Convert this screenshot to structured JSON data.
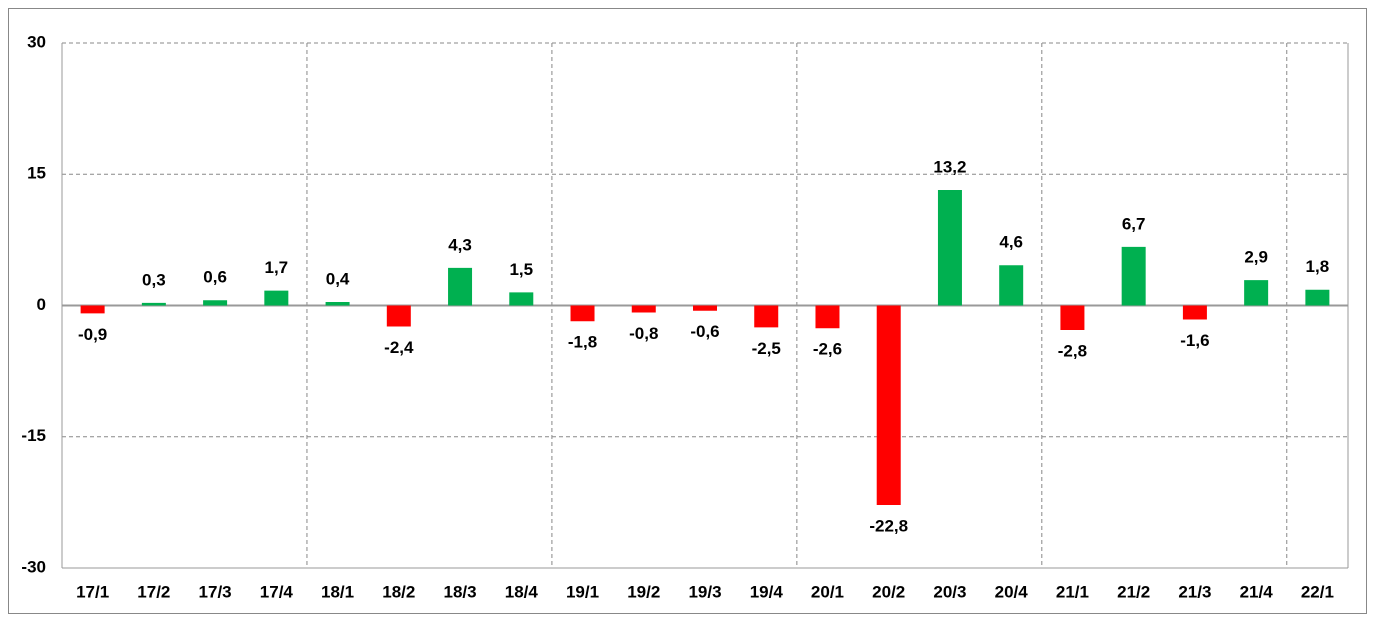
{
  "chart_data": {
    "type": "bar",
    "categories": [
      "17/1",
      "17/2",
      "17/3",
      "17/4",
      "18/1",
      "18/2",
      "18/3",
      "18/4",
      "19/1",
      "19/2",
      "19/3",
      "19/4",
      "20/1",
      "20/2",
      "20/3",
      "20/4",
      "21/1",
      "21/2",
      "21/3",
      "21/4",
      "22/1"
    ],
    "values": [
      -0.9,
      0.3,
      0.6,
      1.7,
      0.4,
      -2.4,
      4.3,
      1.5,
      -1.8,
      -0.8,
      -0.6,
      -2.5,
      -2.6,
      -22.8,
      13.2,
      4.6,
      -2.8,
      6.7,
      -1.6,
      2.9,
      1.8
    ],
    "value_labels": [
      "-0,9",
      "0,3",
      "0,6",
      "1,7",
      "0,4",
      "-2,4",
      "4,3",
      "1,5",
      "-1,8",
      "-0,8",
      "-0,6",
      "-2,5",
      "-2,6",
      "-22,8",
      "13,2",
      "4,6",
      "-2,8",
      "6,7",
      "-1,6",
      "2,9",
      "1,8"
    ],
    "positive_color": "#00b050",
    "negative_color": "#ff0000",
    "ylim": [
      -30,
      30
    ],
    "yticks": [
      -30,
      -15,
      0,
      15,
      30
    ],
    "grid": true
  }
}
